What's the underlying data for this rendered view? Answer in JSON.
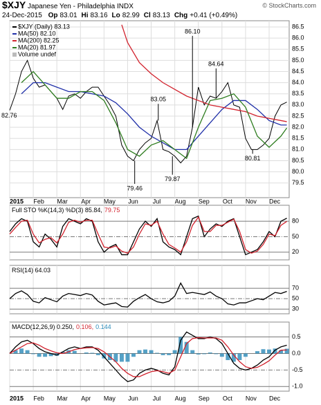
{
  "header": {
    "symbol": "$XJY",
    "name": "Japanese Yen - Philadelphia",
    "exchange": "INDX",
    "credit": "© StockCharts.com",
    "date": "24-Dec-2015",
    "quote": [
      {
        "label": "Op",
        "value": 83.01
      },
      {
        "label": "Hi",
        "value": 83.16
      },
      {
        "label": "Lo",
        "value": 82.99
      },
      {
        "label": "Cl",
        "value": 83.13
      },
      {
        "label": "Chg",
        "value": "+0.41 (+0.49%)"
      }
    ]
  },
  "chart_data": [
    {
      "type": "line",
      "x": [
        0,
        0.25,
        0.5,
        0.75,
        1,
        1.25,
        1.5,
        1.75,
        2,
        2.25,
        2.5,
        2.75,
        3,
        3.25,
        3.5,
        3.75,
        4,
        4.25,
        4.5,
        4.75,
        5,
        5.25,
        5.5,
        5.75,
        6,
        6.25,
        6.5,
        6.75,
        7,
        7.25,
        7.5,
        7.75,
        8,
        8.25,
        8.5,
        8.75,
        9,
        9.25,
        9.5,
        9.75,
        10,
        10.25,
        10.5,
        10.75,
        11,
        11.25,
        11.5,
        11.75
      ],
      "xlim": [
        0,
        11.85
      ],
      "xticks": [
        {
          "value": 0,
          "label": "2015"
        },
        {
          "value": 1,
          "label": "Feb"
        },
        {
          "value": 2,
          "label": "Mar"
        },
        {
          "value": 3,
          "label": "Apr"
        },
        {
          "value": 4,
          "label": "May"
        },
        {
          "value": 5,
          "label": "Jun"
        },
        {
          "value": 6,
          "label": "Jul"
        },
        {
          "value": 7,
          "label": "Aug"
        },
        {
          "value": 8,
          "label": "Sep"
        },
        {
          "value": 9,
          "label": "Oct"
        },
        {
          "value": 10,
          "label": "Nov"
        },
        {
          "value": 11,
          "label": "Dec"
        }
      ],
      "ylim": [
        78.84,
        86.78
      ],
      "yticks": [
        79.5,
        {
          "value": 80,
          "label": "80.0"
        },
        80.5,
        {
          "value": 81,
          "label": "81.0"
        },
        81.5,
        {
          "value": 82,
          "label": "82.0"
        },
        82.5,
        {
          "value": 83,
          "label": "83.0"
        },
        83.5,
        {
          "value": 84,
          "label": "84.0"
        },
        84.5,
        {
          "value": 85,
          "label": "85.0"
        },
        85.5,
        {
          "value": 86,
          "label": "86.0"
        },
        86.5
      ],
      "series": [
        {
          "name": "$XJY (Daily) 83.13",
          "color": "#000000",
          "values": [
            82.76,
            83.5,
            84.5,
            85.0,
            84.2,
            83.8,
            83.9,
            83.6,
            83.3,
            82.8,
            83.4,
            83.5,
            83.3,
            83.6,
            83.8,
            83.8,
            83.4,
            83.0,
            82.5,
            81.2,
            80.7,
            80.5,
            81.0,
            81.3,
            81.5,
            82.3,
            81.0,
            80.9,
            80.7,
            80.4,
            80.7,
            82.0,
            83.8,
            83.0,
            83.4,
            83.3,
            83.6,
            84.0,
            83.0,
            82.9,
            81.5,
            81.0,
            81.0,
            81.2,
            81.5,
            82.5,
            83.0,
            83.13
          ]
        },
        {
          "name": "MA(50) 82.10",
          "color": "#1f2fa8",
          "x": [
            0.5,
            1,
            1.5,
            2,
            2.5,
            3,
            3.5,
            4,
            4.5,
            5,
            5.5,
            6,
            6.5,
            7,
            7.5,
            8,
            8.5,
            9,
            9.5,
            10,
            10.5,
            11,
            11.5,
            11.75
          ],
          "values": [
            83.5,
            84.0,
            84.0,
            83.8,
            83.6,
            83.6,
            83.5,
            83.4,
            83.1,
            82.6,
            82.0,
            81.6,
            81.3,
            81.0,
            81.0,
            81.6,
            82.2,
            82.8,
            83.2,
            83.2,
            82.8,
            82.3,
            82.1,
            82.1
          ]
        },
        {
          "name": "MA(200) 82.25",
          "color": "#d2222d",
          "x": [
            4.75,
            5,
            5.5,
            6,
            6.5,
            7,
            7.5,
            8,
            8.5,
            9,
            9.5,
            10,
            10.5,
            11,
            11.5,
            11.75
          ],
          "values": [
            86.6,
            85.8,
            84.9,
            84.4,
            84.0,
            83.7,
            83.4,
            83.2,
            83.0,
            82.9,
            82.8,
            82.7,
            82.5,
            82.4,
            82.3,
            82.25
          ]
        },
        {
          "name": "MA(20) 81.97",
          "color": "#2e7d1f",
          "x": [
            0.5,
            1,
            1.5,
            2,
            2.5,
            3,
            3.5,
            4,
            4.5,
            5,
            5.5,
            6,
            6.5,
            7,
            7.5,
            8,
            8.5,
            9,
            9.5,
            10,
            10.5,
            11,
            11.5,
            11.75
          ],
          "values": [
            84.0,
            84.5,
            83.9,
            83.3,
            83.3,
            83.6,
            83.6,
            83.2,
            82.2,
            81.0,
            80.7,
            81.2,
            81.4,
            81.0,
            80.6,
            82.0,
            83.2,
            83.3,
            83.5,
            82.9,
            81.6,
            81.1,
            81.6,
            81.97
          ]
        }
      ],
      "notes": [
        "Volume undef"
      ],
      "annotations": [
        {
          "label": "82.76",
          "x": 0,
          "y": 82.76
        },
        {
          "label": "79.46",
          "x": 5.3,
          "y": 79.46
        },
        {
          "label": "83.05",
          "x": 6.3,
          "y": 83.05
        },
        {
          "label": "79.87",
          "x": 6.9,
          "y": 79.87
        },
        {
          "label": "86.10",
          "x": 7.75,
          "y": 86.1
        },
        {
          "label": "84.64",
          "x": 8.75,
          "y": 84.64
        },
        {
          "label": "80.81",
          "x": 10.3,
          "y": 80.81
        }
      ]
    },
    {
      "type": "line",
      "ylim": [
        5,
        111
      ],
      "yticks": [
        20,
        50,
        80
      ],
      "legend": [
        {
          "text": "Full STO %K(14,3) %D(3) 85.84,",
          "color": "#000000"
        },
        {
          "text": "79.75",
          "color": "#d2222d"
        }
      ],
      "series": [
        {
          "color": "#000000",
          "values": [
            60,
            75,
            85,
            80,
            40,
            30,
            55,
            45,
            30,
            70,
            85,
            80,
            75,
            85,
            80,
            40,
            20,
            30,
            35,
            15,
            15,
            40,
            65,
            80,
            70,
            85,
            40,
            30,
            25,
            15,
            50,
            85,
            90,
            50,
            65,
            75,
            70,
            80,
            85,
            50,
            15,
            20,
            25,
            40,
            60,
            50,
            80,
            85.84
          ]
        },
        {
          "color": "#d2222d",
          "values": [
            55,
            68,
            80,
            82,
            55,
            38,
            45,
            48,
            38,
            55,
            78,
            82,
            78,
            82,
            82,
            55,
            30,
            28,
            32,
            22,
            18,
            30,
            55,
            75,
            72,
            80,
            55,
            35,
            28,
            20,
            40,
            72,
            88,
            60,
            60,
            72,
            72,
            78,
            84,
            60,
            25,
            18,
            22,
            35,
            55,
            52,
            72,
            79.75
          ]
        }
      ]
    },
    {
      "type": "line",
      "ylim": [
        21,
        114
      ],
      "yticks": [
        30,
        50,
        70
      ],
      "legend": [
        {
          "text": "RSI(14) 64.03",
          "color": "#000000"
        }
      ],
      "series": [
        {
          "color": "#000000",
          "values": [
            50,
            60,
            65,
            58,
            45,
            42,
            52,
            48,
            44,
            55,
            60,
            58,
            56,
            60,
            57,
            45,
            38,
            40,
            42,
            35,
            34,
            45,
            52,
            58,
            50,
            44,
            42,
            45,
            55,
            80,
            60,
            62,
            60,
            58,
            63,
            55,
            50,
            40,
            38,
            42,
            42,
            46,
            50,
            48,
            55,
            62,
            60,
            64.03
          ]
        }
      ]
    },
    {
      "type": "line",
      "ylim": [
        -1.14,
        0.95
      ],
      "yticks": [
        {
          "value": -1,
          "label": "-1.0"
        },
        -0.5,
        {
          "value": 0,
          "label": "0.0"
        },
        0.5
      ],
      "legend": [
        {
          "text": "MACD(12,26,9) 0.250,",
          "color": "#000000"
        },
        {
          "text": "0.106,",
          "color": "#d2222d"
        },
        {
          "text": "0.144",
          "color": "#2a8ab8"
        }
      ],
      "series": [
        {
          "type": "bar",
          "color": "#2a8ab8",
          "values": [
            0,
            0.1,
            0.15,
            0.1,
            -0.02,
            -0.1,
            -0.1,
            -0.08,
            -0.07,
            0.05,
            0.1,
            0.08,
            0,
            0.03,
            0.02,
            -0.05,
            -0.15,
            -0.2,
            -0.25,
            -0.25,
            -0.25,
            -0.1,
            0.1,
            0.12,
            0.1,
            0.02,
            -0.05,
            -0.05,
            0.1,
            0.5,
            0.35,
            0.1,
            -0.03,
            -0.02,
            0.03,
            -0.02,
            -0.1,
            -0.2,
            -0.25,
            -0.2,
            -0.1,
            0,
            0.07,
            0.13,
            0.12,
            0.15,
            0.1,
            0.144
          ]
        },
        {
          "color": "#000000",
          "values": [
            0,
            0.2,
            0.35,
            0.4,
            0.3,
            0.15,
            0.05,
            0,
            -0.05,
            0.05,
            0.15,
            0.2,
            0.15,
            0.2,
            0.2,
            0.1,
            -0.1,
            -0.3,
            -0.5,
            -0.7,
            -0.85,
            -0.8,
            -0.6,
            -0.5,
            -0.45,
            -0.5,
            -0.6,
            -0.65,
            -0.4,
            0.4,
            0.65,
            0.55,
            0.45,
            0.45,
            0.5,
            0.45,
            0.3,
            0,
            -0.3,
            -0.45,
            -0.5,
            -0.45,
            -0.35,
            -0.2,
            -0.1,
            0.1,
            0.2,
            0.25
          ]
        },
        {
          "color": "#d2222d",
          "values": [
            0,
            0.1,
            0.2,
            0.3,
            0.32,
            0.25,
            0.15,
            0.08,
            0.02,
            0,
            0.05,
            0.12,
            0.15,
            0.17,
            0.18,
            0.15,
            0.05,
            -0.1,
            -0.25,
            -0.45,
            -0.6,
            -0.7,
            -0.7,
            -0.62,
            -0.55,
            -0.52,
            -0.55,
            -0.6,
            -0.5,
            -0.1,
            0.3,
            0.45,
            0.48,
            0.47,
            0.47,
            0.47,
            0.4,
            0.2,
            -0.05,
            -0.25,
            -0.4,
            -0.45,
            -0.42,
            -0.33,
            -0.22,
            -0.05,
            0.1,
            0.106
          ]
        }
      ]
    }
  ]
}
